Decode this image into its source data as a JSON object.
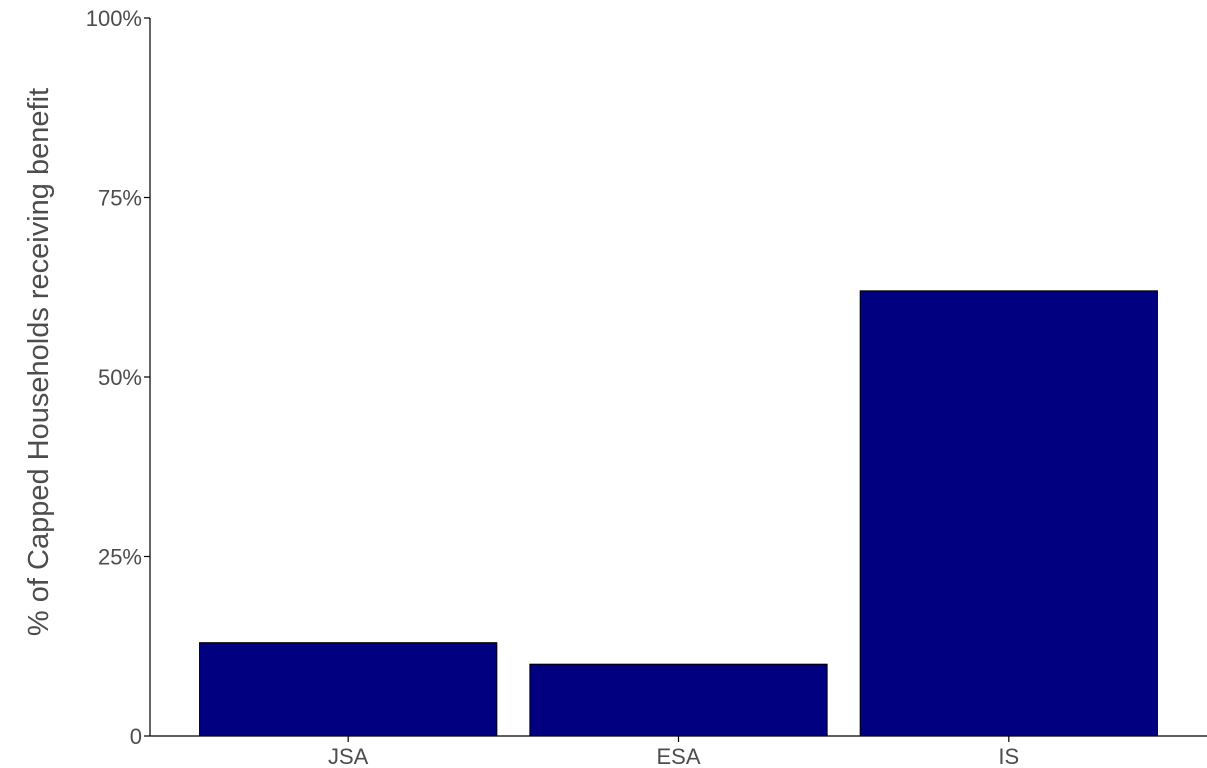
{
  "chart_data": {
    "type": "bar",
    "categories": [
      "JSA",
      "ESA",
      "IS"
    ],
    "values": [
      13,
      10,
      62
    ],
    "title": "",
    "xlabel": "",
    "ylabel": "% of Capped Households receiving benefit",
    "ylim": [
      0,
      100
    ],
    "yticks": [
      0,
      25,
      50,
      75,
      100
    ],
    "ytick_labels": [
      "0",
      "25%",
      "50%",
      "75%",
      "100%"
    ],
    "grid": false,
    "legend": "none",
    "bar_color": "#000080",
    "bar_outline_color": "#000000",
    "axis_color": "#000000",
    "text_color": "#4d4d4d"
  }
}
